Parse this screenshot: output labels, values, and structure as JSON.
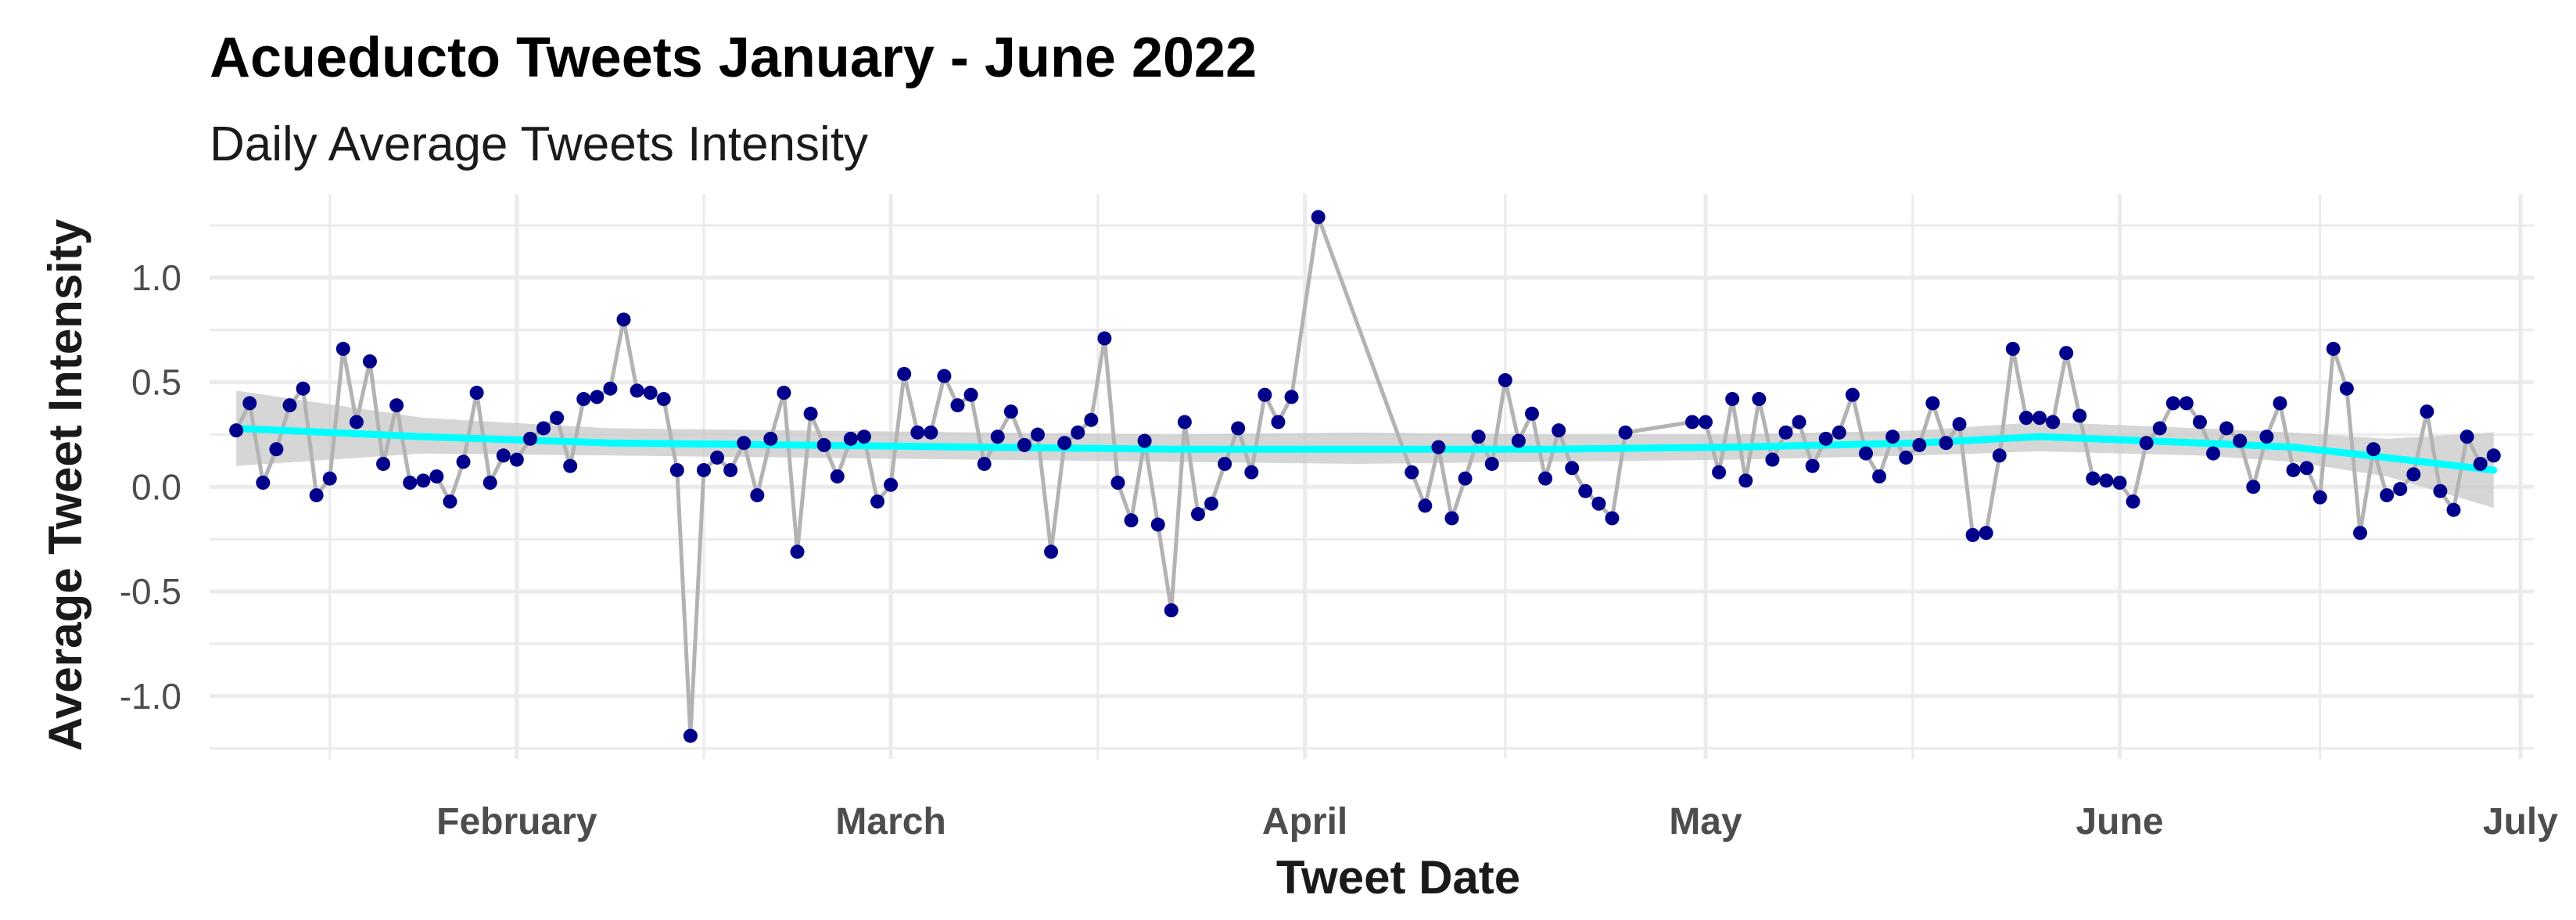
{
  "chart_data": {
    "type": "line",
    "title": "Acueducto Tweets January - June 2022",
    "subtitle": "Daily Average Tweets Intensity",
    "xlabel": "Tweet Date",
    "ylabel": "Average Tweet Intensity",
    "xlim": [
      "2022-01-09",
      "2022-07-02"
    ],
    "ylim": [
      -1.3,
      1.4
    ],
    "x_ticks": [
      {
        "label": "February",
        "date": "2022-02-01"
      },
      {
        "label": "March",
        "date": "2022-03-01"
      },
      {
        "label": "April",
        "date": "2022-04-01"
      },
      {
        "label": "May",
        "date": "2022-05-01"
      },
      {
        "label": "June",
        "date": "2022-06-01"
      },
      {
        "label": "July",
        "date": "2022-07-01"
      }
    ],
    "y_ticks": [
      {
        "label": "-1.0",
        "value": -1.0
      },
      {
        "label": "-0.5",
        "value": -0.5
      },
      {
        "label": "0.0",
        "value": 0.0
      },
      {
        "label": "0.5",
        "value": 0.5
      },
      {
        "label": "1.0",
        "value": 1.0
      }
    ],
    "grid": true,
    "colors": {
      "line": "#b3b3b3",
      "points": "#00008b",
      "smooth": "#00ffff",
      "band": "#c8c8c8",
      "grid": "#ebebeb"
    },
    "series": [
      {
        "kind": "daily",
        "points": [
          [
            "2022-01-11",
            0.27
          ],
          [
            "2022-01-12",
            0.4
          ],
          [
            "2022-01-13",
            0.02
          ],
          [
            "2022-01-14",
            0.18
          ],
          [
            "2022-01-15",
            0.39
          ],
          [
            "2022-01-16",
            0.47
          ],
          [
            "2022-01-17",
            -0.04
          ],
          [
            "2022-01-18",
            0.04
          ],
          [
            "2022-01-19",
            0.66
          ],
          [
            "2022-01-20",
            0.31
          ],
          [
            "2022-01-21",
            0.6
          ],
          [
            "2022-01-22",
            0.11
          ],
          [
            "2022-01-23",
            0.39
          ],
          [
            "2022-01-24",
            0.02
          ],
          [
            "2022-01-25",
            0.03
          ],
          [
            "2022-01-26",
            0.05
          ],
          [
            "2022-01-27",
            -0.07
          ],
          [
            "2022-01-28",
            0.12
          ],
          [
            "2022-01-29",
            0.45
          ],
          [
            "2022-01-30",
            0.02
          ],
          [
            "2022-01-31",
            0.15
          ],
          [
            "2022-02-01",
            0.13
          ],
          [
            "2022-02-02",
            0.23
          ],
          [
            "2022-02-03",
            0.28
          ],
          [
            "2022-02-04",
            0.33
          ],
          [
            "2022-02-05",
            0.1
          ],
          [
            "2022-02-06",
            0.42
          ],
          [
            "2022-02-07",
            0.43
          ],
          [
            "2022-02-08",
            0.47
          ],
          [
            "2022-02-09",
            0.8
          ],
          [
            "2022-02-10",
            0.46
          ],
          [
            "2022-02-11",
            0.45
          ],
          [
            "2022-02-12",
            0.42
          ],
          [
            "2022-02-13",
            0.08
          ],
          [
            "2022-02-14",
            -1.19
          ],
          [
            "2022-02-15",
            0.08
          ],
          [
            "2022-02-16",
            0.14
          ],
          [
            "2022-02-17",
            0.08
          ],
          [
            "2022-02-18",
            0.21
          ],
          [
            "2022-02-19",
            -0.04
          ],
          [
            "2022-02-20",
            0.23
          ],
          [
            "2022-02-21",
            0.45
          ],
          [
            "2022-02-22",
            -0.31
          ],
          [
            "2022-02-23",
            0.35
          ],
          [
            "2022-02-24",
            0.2
          ],
          [
            "2022-02-25",
            0.05
          ],
          [
            "2022-02-26",
            0.23
          ],
          [
            "2022-02-27",
            0.24
          ],
          [
            "2022-02-28",
            -0.07
          ],
          [
            "2022-03-01",
            0.01
          ],
          [
            "2022-03-02",
            0.54
          ],
          [
            "2022-03-03",
            0.26
          ],
          [
            "2022-03-04",
            0.26
          ],
          [
            "2022-03-05",
            0.53
          ],
          [
            "2022-03-06",
            0.39
          ],
          [
            "2022-03-07",
            0.44
          ],
          [
            "2022-03-08",
            0.11
          ],
          [
            "2022-03-09",
            0.24
          ],
          [
            "2022-03-10",
            0.36
          ],
          [
            "2022-03-11",
            0.2
          ],
          [
            "2022-03-12",
            0.25
          ],
          [
            "2022-03-13",
            -0.31
          ],
          [
            "2022-03-14",
            0.21
          ],
          [
            "2022-03-15",
            0.26
          ],
          [
            "2022-03-16",
            0.32
          ],
          [
            "2022-03-17",
            0.71
          ],
          [
            "2022-03-18",
            0.02
          ],
          [
            "2022-03-19",
            -0.16
          ],
          [
            "2022-03-20",
            0.22
          ],
          [
            "2022-03-21",
            -0.18
          ],
          [
            "2022-03-22",
            -0.59
          ],
          [
            "2022-03-23",
            0.31
          ],
          [
            "2022-03-24",
            -0.13
          ],
          [
            "2022-03-25",
            -0.08
          ],
          [
            "2022-03-26",
            0.11
          ],
          [
            "2022-03-27",
            0.28
          ],
          [
            "2022-03-28",
            0.07
          ],
          [
            "2022-03-29",
            0.44
          ],
          [
            "2022-03-30",
            0.31
          ],
          [
            "2022-03-31",
            0.43
          ],
          [
            "2022-04-02",
            1.29
          ],
          [
            "2022-04-09",
            0.07
          ],
          [
            "2022-04-10",
            -0.09
          ],
          [
            "2022-04-11",
            0.19
          ],
          [
            "2022-04-12",
            -0.15
          ],
          [
            "2022-04-13",
            0.04
          ],
          [
            "2022-04-14",
            0.24
          ],
          [
            "2022-04-15",
            0.11
          ],
          [
            "2022-04-16",
            0.51
          ],
          [
            "2022-04-17",
            0.22
          ],
          [
            "2022-04-18",
            0.35
          ],
          [
            "2022-04-19",
            0.04
          ],
          [
            "2022-04-20",
            0.27
          ],
          [
            "2022-04-21",
            0.09
          ],
          [
            "2022-04-22",
            -0.02
          ],
          [
            "2022-04-23",
            -0.08
          ],
          [
            "2022-04-24",
            -0.15
          ],
          [
            "2022-04-25",
            0.26
          ],
          [
            "2022-04-30",
            0.31
          ],
          [
            "2022-05-01",
            0.31
          ],
          [
            "2022-05-02",
            0.07
          ],
          [
            "2022-05-03",
            0.42
          ],
          [
            "2022-05-04",
            0.03
          ],
          [
            "2022-05-05",
            0.42
          ],
          [
            "2022-05-06",
            0.13
          ],
          [
            "2022-05-07",
            0.26
          ],
          [
            "2022-05-08",
            0.31
          ],
          [
            "2022-05-09",
            0.1
          ],
          [
            "2022-05-10",
            0.23
          ],
          [
            "2022-05-11",
            0.26
          ],
          [
            "2022-05-12",
            0.44
          ],
          [
            "2022-05-13",
            0.16
          ],
          [
            "2022-05-14",
            0.05
          ],
          [
            "2022-05-15",
            0.24
          ],
          [
            "2022-05-16",
            0.14
          ],
          [
            "2022-05-17",
            0.2
          ],
          [
            "2022-05-18",
            0.4
          ],
          [
            "2022-05-19",
            0.21
          ],
          [
            "2022-05-20",
            0.3
          ],
          [
            "2022-05-21",
            -0.23
          ],
          [
            "2022-05-22",
            -0.22
          ],
          [
            "2022-05-23",
            0.15
          ],
          [
            "2022-05-24",
            0.66
          ],
          [
            "2022-05-25",
            0.33
          ],
          [
            "2022-05-26",
            0.33
          ],
          [
            "2022-05-27",
            0.31
          ],
          [
            "2022-05-28",
            0.64
          ],
          [
            "2022-05-29",
            0.34
          ],
          [
            "2022-05-30",
            0.04
          ],
          [
            "2022-05-31",
            0.03
          ],
          [
            "2022-06-01",
            0.02
          ],
          [
            "2022-06-02",
            -0.07
          ],
          [
            "2022-06-03",
            0.21
          ],
          [
            "2022-06-04",
            0.28
          ],
          [
            "2022-06-05",
            0.4
          ],
          [
            "2022-06-06",
            0.4
          ],
          [
            "2022-06-07",
            0.31
          ],
          [
            "2022-06-08",
            0.16
          ],
          [
            "2022-06-09",
            0.28
          ],
          [
            "2022-06-10",
            0.22
          ],
          [
            "2022-06-11",
            0.0
          ],
          [
            "2022-06-12",
            0.24
          ],
          [
            "2022-06-13",
            0.4
          ],
          [
            "2022-06-14",
            0.08
          ],
          [
            "2022-06-15",
            0.09
          ],
          [
            "2022-06-16",
            -0.05
          ],
          [
            "2022-06-17",
            0.66
          ],
          [
            "2022-06-18",
            0.47
          ],
          [
            "2022-06-19",
            -0.22
          ],
          [
            "2022-06-20",
            0.18
          ],
          [
            "2022-06-21",
            -0.04
          ],
          [
            "2022-06-22",
            -0.01
          ],
          [
            "2022-06-23",
            0.06
          ],
          [
            "2022-06-24",
            0.36
          ],
          [
            "2022-06-25",
            -0.02
          ],
          [
            "2022-06-26",
            -0.11
          ],
          [
            "2022-06-27",
            0.24
          ],
          [
            "2022-06-28",
            0.11
          ],
          [
            "2022-06-29",
            0.15
          ]
        ]
      },
      {
        "kind": "smoothed-trend",
        "points": [
          [
            "2022-01-11",
            0.28
          ],
          [
            "2022-01-25",
            0.24
          ],
          [
            "2022-02-08",
            0.21
          ],
          [
            "2022-02-22",
            0.2
          ],
          [
            "2022-03-08",
            0.19
          ],
          [
            "2022-03-22",
            0.18
          ],
          [
            "2022-04-05",
            0.18
          ],
          [
            "2022-04-19",
            0.18
          ],
          [
            "2022-05-03",
            0.19
          ],
          [
            "2022-05-17",
            0.21
          ],
          [
            "2022-05-26",
            0.24
          ],
          [
            "2022-06-07",
            0.21
          ],
          [
            "2022-06-14",
            0.19
          ],
          [
            "2022-06-21",
            0.14
          ],
          [
            "2022-06-29",
            0.08
          ]
        ],
        "band": [
          [
            "2022-01-11",
            0.1,
            0.46
          ],
          [
            "2022-01-25",
            0.16,
            0.33
          ],
          [
            "2022-02-08",
            0.15,
            0.28
          ],
          [
            "2022-02-22",
            0.14,
            0.27
          ],
          [
            "2022-03-08",
            0.13,
            0.26
          ],
          [
            "2022-03-22",
            0.12,
            0.25
          ],
          [
            "2022-04-05",
            0.11,
            0.26
          ],
          [
            "2022-04-19",
            0.12,
            0.25
          ],
          [
            "2022-05-03",
            0.13,
            0.25
          ],
          [
            "2022-05-17",
            0.15,
            0.27
          ],
          [
            "2022-05-26",
            0.17,
            0.31
          ],
          [
            "2022-06-07",
            0.15,
            0.28
          ],
          [
            "2022-06-14",
            0.12,
            0.26
          ],
          [
            "2022-06-21",
            0.05,
            0.23
          ],
          [
            "2022-06-29",
            -0.1,
            0.26
          ]
        ]
      }
    ]
  }
}
